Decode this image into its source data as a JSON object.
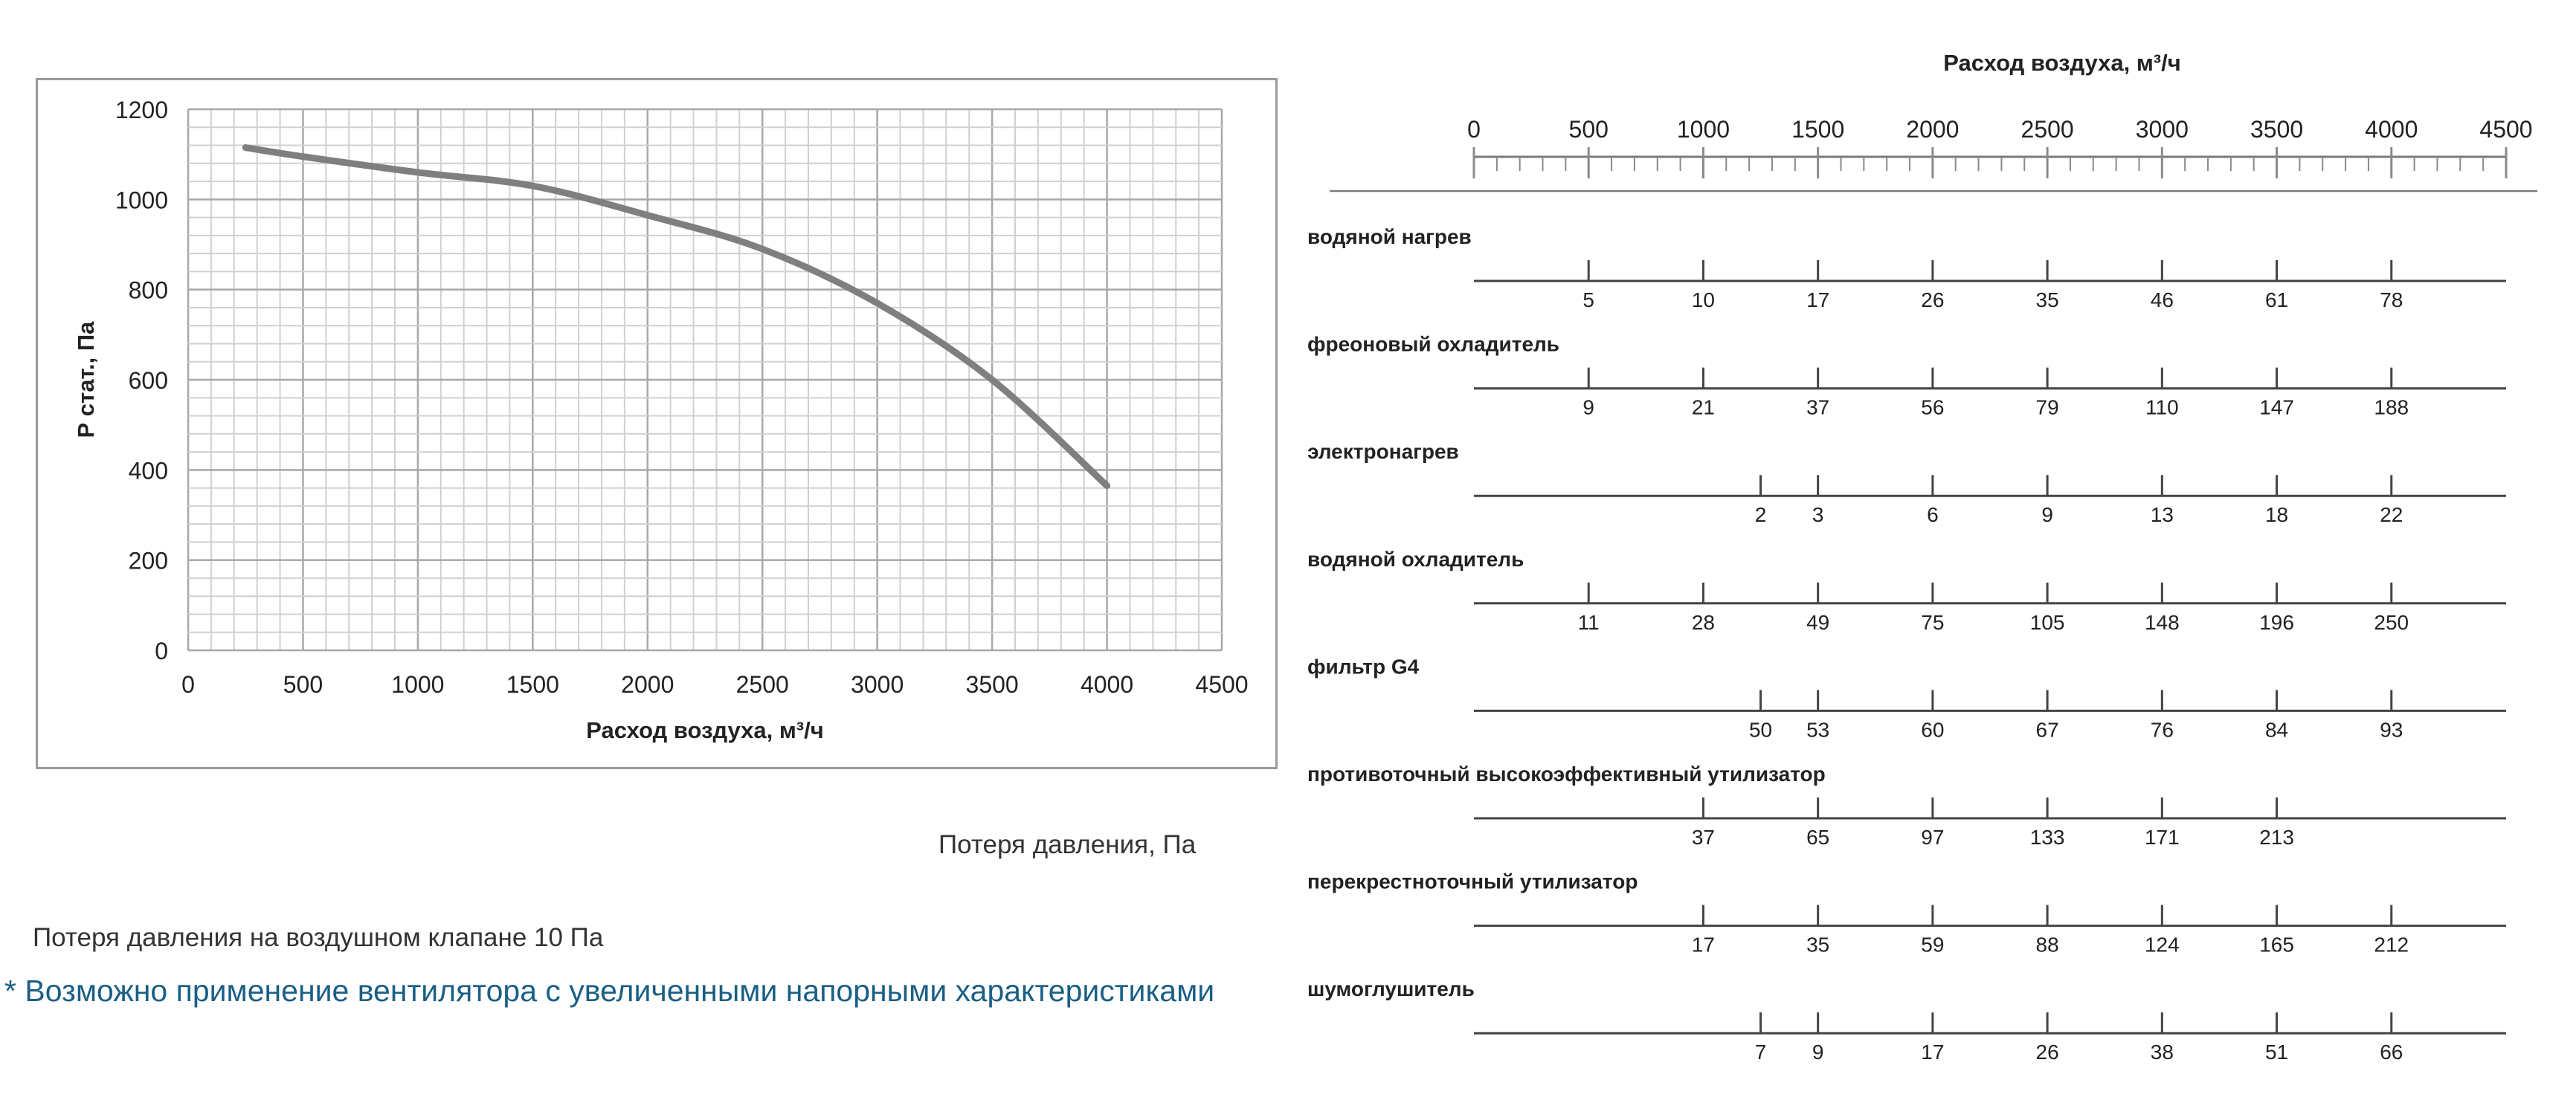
{
  "notes": {
    "pressure_loss_title": "Потеря давления, Па",
    "valve_loss": "Потеря давления на воздушном клапане 10 Па",
    "footnote": "* Возможно применение вентилятора с увеличенными напорными характеристиками"
  },
  "colors": {
    "curve": "#7f7f7f",
    "footnote": "#1a5f85",
    "grid": "#d0d0d0"
  },
  "chart_data": [
    {
      "type": "line",
      "title": "",
      "xlabel": "Расход воздуха, м³/ч",
      "ylabel": "Р стат., Па",
      "xlim": [
        0,
        4500
      ],
      "ylim": [
        0,
        1200
      ],
      "x_ticks": [
        "0",
        "500",
        "1000",
        "1500",
        "2000",
        "2500",
        "3000",
        "3500",
        "4000",
        "4500"
      ],
      "y_ticks": [
        "0",
        "200",
        "400",
        "600",
        "800",
        "1000",
        "1200"
      ],
      "grid": true,
      "series": [
        {
          "x": [
            250,
            500,
            1000,
            1500,
            2000,
            2500,
            3000,
            3500,
            4000
          ],
          "y": [
            1115,
            1095,
            1060,
            1030,
            965,
            890,
            770,
            600,
            365
          ]
        }
      ]
    },
    {
      "type": "table",
      "title": "Расход воздуха, м³/ч",
      "scale": [
        "0",
        "500",
        "1000",
        "1500",
        "2000",
        "2500",
        "3000",
        "3500",
        "4000",
        "4500"
      ],
      "xlim": [
        0,
        4500
      ],
      "rows": [
        {
          "name": "водяной нагрев",
          "points": [
            {
              "x": 500,
              "label": "5"
            },
            {
              "x": 1000,
              "label": "10"
            },
            {
              "x": 1500,
              "label": "17"
            },
            {
              "x": 2000,
              "label": "26"
            },
            {
              "x": 2500,
              "label": "35"
            },
            {
              "x": 3000,
              "label": "46"
            },
            {
              "x": 3500,
              "label": "61"
            },
            {
              "x": 4000,
              "label": "78"
            }
          ]
        },
        {
          "name": "фреоновый охладитель",
          "points": [
            {
              "x": 500,
              "label": "9"
            },
            {
              "x": 1000,
              "label": "21"
            },
            {
              "x": 1500,
              "label": "37"
            },
            {
              "x": 2000,
              "label": "56"
            },
            {
              "x": 2500,
              "label": "79"
            },
            {
              "x": 3000,
              "label": "110"
            },
            {
              "x": 3500,
              "label": "147"
            },
            {
              "x": 4000,
              "label": "188"
            }
          ]
        },
        {
          "name": "электронагрев",
          "points": [
            {
              "x": 1250,
              "label": "2"
            },
            {
              "x": 1500,
              "label": "3"
            },
            {
              "x": 2000,
              "label": "6"
            },
            {
              "x": 2500,
              "label": "9"
            },
            {
              "x": 3000,
              "label": "13"
            },
            {
              "x": 3500,
              "label": "18"
            },
            {
              "x": 4000,
              "label": "22"
            }
          ]
        },
        {
          "name": "водяной охладитель",
          "points": [
            {
              "x": 500,
              "label": "11"
            },
            {
              "x": 1000,
              "label": "28"
            },
            {
              "x": 1500,
              "label": "49"
            },
            {
              "x": 2000,
              "label": "75"
            },
            {
              "x": 2500,
              "label": "105"
            },
            {
              "x": 3000,
              "label": "148"
            },
            {
              "x": 3500,
              "label": "196"
            },
            {
              "x": 4000,
              "label": "250"
            }
          ]
        },
        {
          "name": "фильтр G4",
          "points": [
            {
              "x": 1250,
              "label": "50"
            },
            {
              "x": 1500,
              "label": "53"
            },
            {
              "x": 2000,
              "label": "60"
            },
            {
              "x": 2500,
              "label": "67"
            },
            {
              "x": 3000,
              "label": "76"
            },
            {
              "x": 3500,
              "label": "84"
            },
            {
              "x": 4000,
              "label": "93"
            }
          ]
        },
        {
          "name": "противоточный высокоэффективный утилизатор",
          "points": [
            {
              "x": 1000,
              "label": "37"
            },
            {
              "x": 1500,
              "label": "65"
            },
            {
              "x": 2000,
              "label": "97"
            },
            {
              "x": 2500,
              "label": "133"
            },
            {
              "x": 3000,
              "label": "171"
            },
            {
              "x": 3500,
              "label": "213"
            }
          ]
        },
        {
          "name": "перекрестноточный утилизатор",
          "points": [
            {
              "x": 1000,
              "label": "17"
            },
            {
              "x": 1500,
              "label": "35"
            },
            {
              "x": 2000,
              "label": "59"
            },
            {
              "x": 2500,
              "label": "88"
            },
            {
              "x": 3000,
              "label": "124"
            },
            {
              "x": 3500,
              "label": "165"
            },
            {
              "x": 4000,
              "label": "212"
            }
          ]
        },
        {
          "name": "шумоглушитель",
          "points": [
            {
              "x": 1250,
              "label": "7"
            },
            {
              "x": 1500,
              "label": "9"
            },
            {
              "x": 2000,
              "label": "17"
            },
            {
              "x": 2500,
              "label": "26"
            },
            {
              "x": 3000,
              "label": "38"
            },
            {
              "x": 3500,
              "label": "51"
            },
            {
              "x": 4000,
              "label": "66"
            }
          ]
        }
      ]
    }
  ]
}
